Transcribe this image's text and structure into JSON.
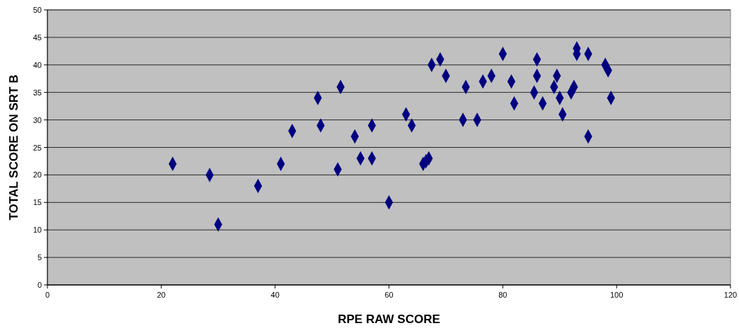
{
  "chart_data": {
    "type": "scatter",
    "xlabel": "RPE RAW SCORE",
    "ylabel": "TOTAL SCORE ON SRT B",
    "x": [
      22,
      28.5,
      30,
      37,
      41,
      43,
      47.5,
      48,
      51,
      51.5,
      54,
      55,
      57,
      57,
      60,
      63,
      64,
      66,
      66.5,
      67,
      67.5,
      69,
      70,
      73,
      73.5,
      75.5,
      76.5,
      78,
      80,
      81.5,
      82,
      85.5,
      86,
      86,
      87,
      89,
      89.5,
      90,
      90.5,
      92,
      92.5,
      93,
      93,
      95,
      95,
      98,
      98.5,
      99
    ],
    "series": [
      {
        "color": "#000080",
        "values": [
          22,
          20,
          11,
          18,
          22,
          28,
          34,
          29,
          21,
          36,
          27,
          23,
          29,
          23,
          15,
          31,
          29,
          22,
          22.5,
          23,
          40,
          41,
          38,
          30,
          36,
          30,
          37,
          38,
          42,
          37,
          33,
          35,
          41,
          38,
          33,
          36,
          38,
          34,
          31,
          35,
          36,
          43,
          42,
          42,
          27,
          40,
          39,
          34
        ]
      }
    ],
    "xlim": [
      0,
      120
    ],
    "xticks": [
      0,
      20,
      40,
      60,
      80,
      100,
      120
    ],
    "ylim": [
      0,
      50
    ],
    "yticks": [
      0,
      5,
      10,
      15,
      20,
      25,
      30,
      35,
      40,
      45,
      50
    ],
    "grid": "y",
    "marker": "diamond"
  }
}
